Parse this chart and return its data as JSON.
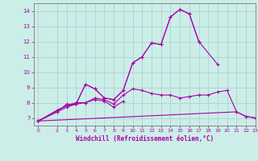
{
  "xlabel": "Windchill (Refroidissement éolien,°C)",
  "background_color": "#cceee8",
  "grid_color": "#aacccc",
  "line_color": "#aa00aa",
  "x_values": [
    0,
    1,
    2,
    3,
    4,
    5,
    6,
    7,
    8,
    9,
    10,
    11,
    12,
    13,
    14,
    15,
    16,
    17,
    18,
    19,
    20,
    21,
    22,
    23
  ],
  "lines": [
    [
      6.8,
      null,
      7.4,
      7.9,
      7.9,
      9.2,
      8.9,
      8.3,
      8.2,
      8.8,
      10.6,
      11.0,
      11.9,
      11.8,
      13.6,
      14.1,
      13.8,
      12.0,
      null,
      10.5,
      null,
      null,
      null,
      null
    ],
    [
      6.8,
      null,
      7.5,
      7.8,
      7.9,
      9.2,
      8.9,
      8.3,
      8.2,
      8.8,
      10.6,
      11.0,
      11.9,
      11.8,
      13.6,
      14.1,
      13.8,
      12.0,
      null,
      null,
      null,
      null,
      null,
      null
    ],
    [
      6.8,
      null,
      7.5,
      7.8,
      8.0,
      8.0,
      8.3,
      8.2,
      7.9,
      8.5,
      8.9,
      8.8,
      8.6,
      8.5,
      8.5,
      8.3,
      8.4,
      8.5,
      8.5,
      8.7,
      8.8,
      7.4,
      7.1,
      7.0
    ],
    [
      6.8,
      null,
      7.4,
      7.7,
      7.9,
      8.0,
      8.2,
      8.1,
      7.7,
      8.1,
      null,
      null,
      null,
      null,
      null,
      null,
      null,
      null,
      null,
      null,
      null,
      null,
      null,
      null
    ],
    [
      6.8,
      null,
      null,
      null,
      null,
      null,
      null,
      null,
      null,
      null,
      null,
      null,
      null,
      null,
      null,
      null,
      null,
      null,
      null,
      null,
      null,
      7.4,
      7.1,
      7.0
    ]
  ],
  "ylim": [
    6.5,
    14.5
  ],
  "xlim": [
    -0.5,
    23
  ],
  "yticks": [
    7,
    8,
    9,
    10,
    11,
    12,
    13,
    14
  ],
  "xticks": [
    0,
    2,
    3,
    4,
    5,
    6,
    7,
    8,
    9,
    10,
    11,
    12,
    13,
    14,
    15,
    16,
    17,
    18,
    19,
    20,
    21,
    22,
    23
  ]
}
